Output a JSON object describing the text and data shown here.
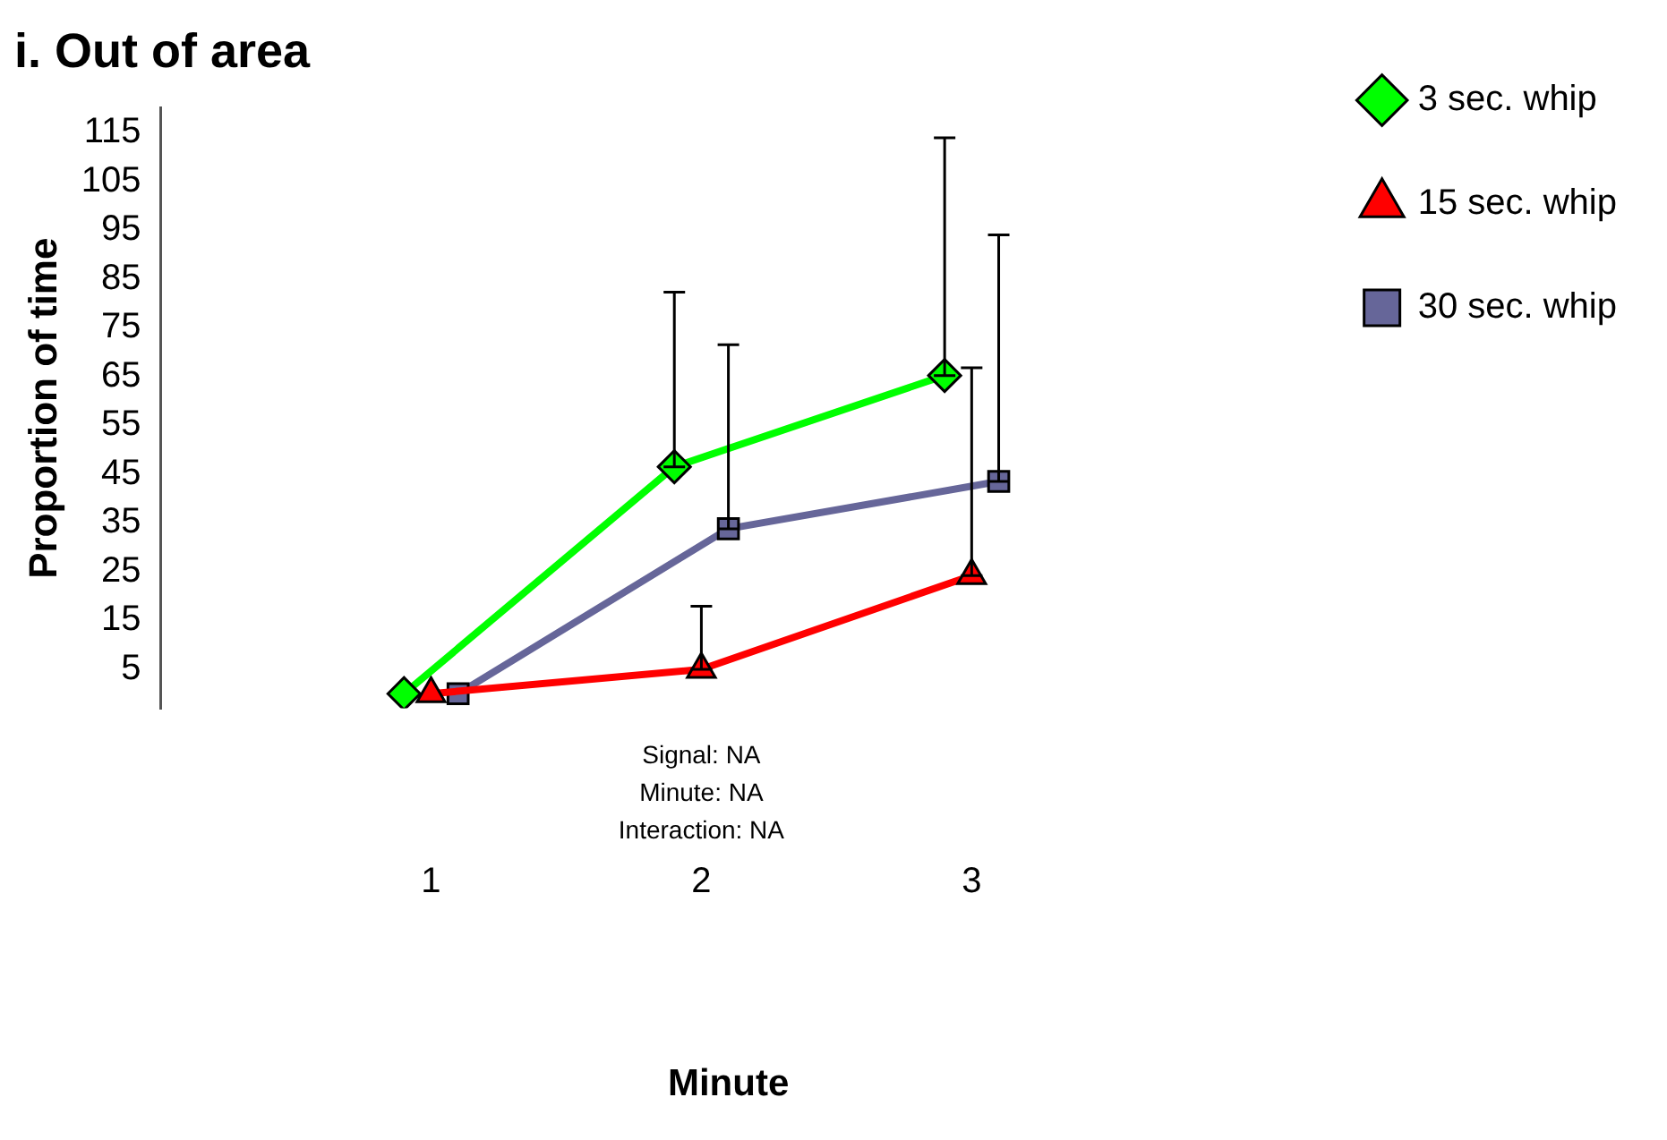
{
  "chart_data": {
    "type": "line",
    "title": "i. Out of area",
    "xlabel": "Minute",
    "ylabel": "Proportion of time",
    "categories": [
      "1",
      "2",
      "3"
    ],
    "series": [
      {
        "name": "3 sec. whip",
        "color": "#00ff00",
        "marker": "diamond",
        "values": [
          0,
          46.5,
          65.2
        ],
        "errors": [
          null,
          [
            46.5,
            82.3
          ],
          [
            65.2,
            113.9
          ]
        ]
      },
      {
        "name": "15 sec. whip",
        "color": "#ff0000",
        "marker": "triangle",
        "values": [
          0,
          5,
          24.2
        ],
        "errors": [
          null,
          [
            5,
            17.9
          ],
          [
            24.2,
            66.8
          ]
        ]
      },
      {
        "name": "30 sec. whip",
        "color": "#666699",
        "marker": "square",
        "values": [
          0,
          33.8,
          43.5
        ],
        "errors": [
          null,
          [
            33.8,
            71.5
          ],
          [
            43.5,
            94
          ]
        ]
      }
    ],
    "ylim": [
      -3,
      120
    ],
    "yticks": [
      5,
      15,
      25,
      35,
      45,
      55,
      65,
      75,
      85,
      95,
      105,
      115
    ],
    "grid": false,
    "legend": "top right",
    "annotations": [
      "Signal: NA",
      "Minute: NA",
      "Interaction: NA"
    ]
  }
}
